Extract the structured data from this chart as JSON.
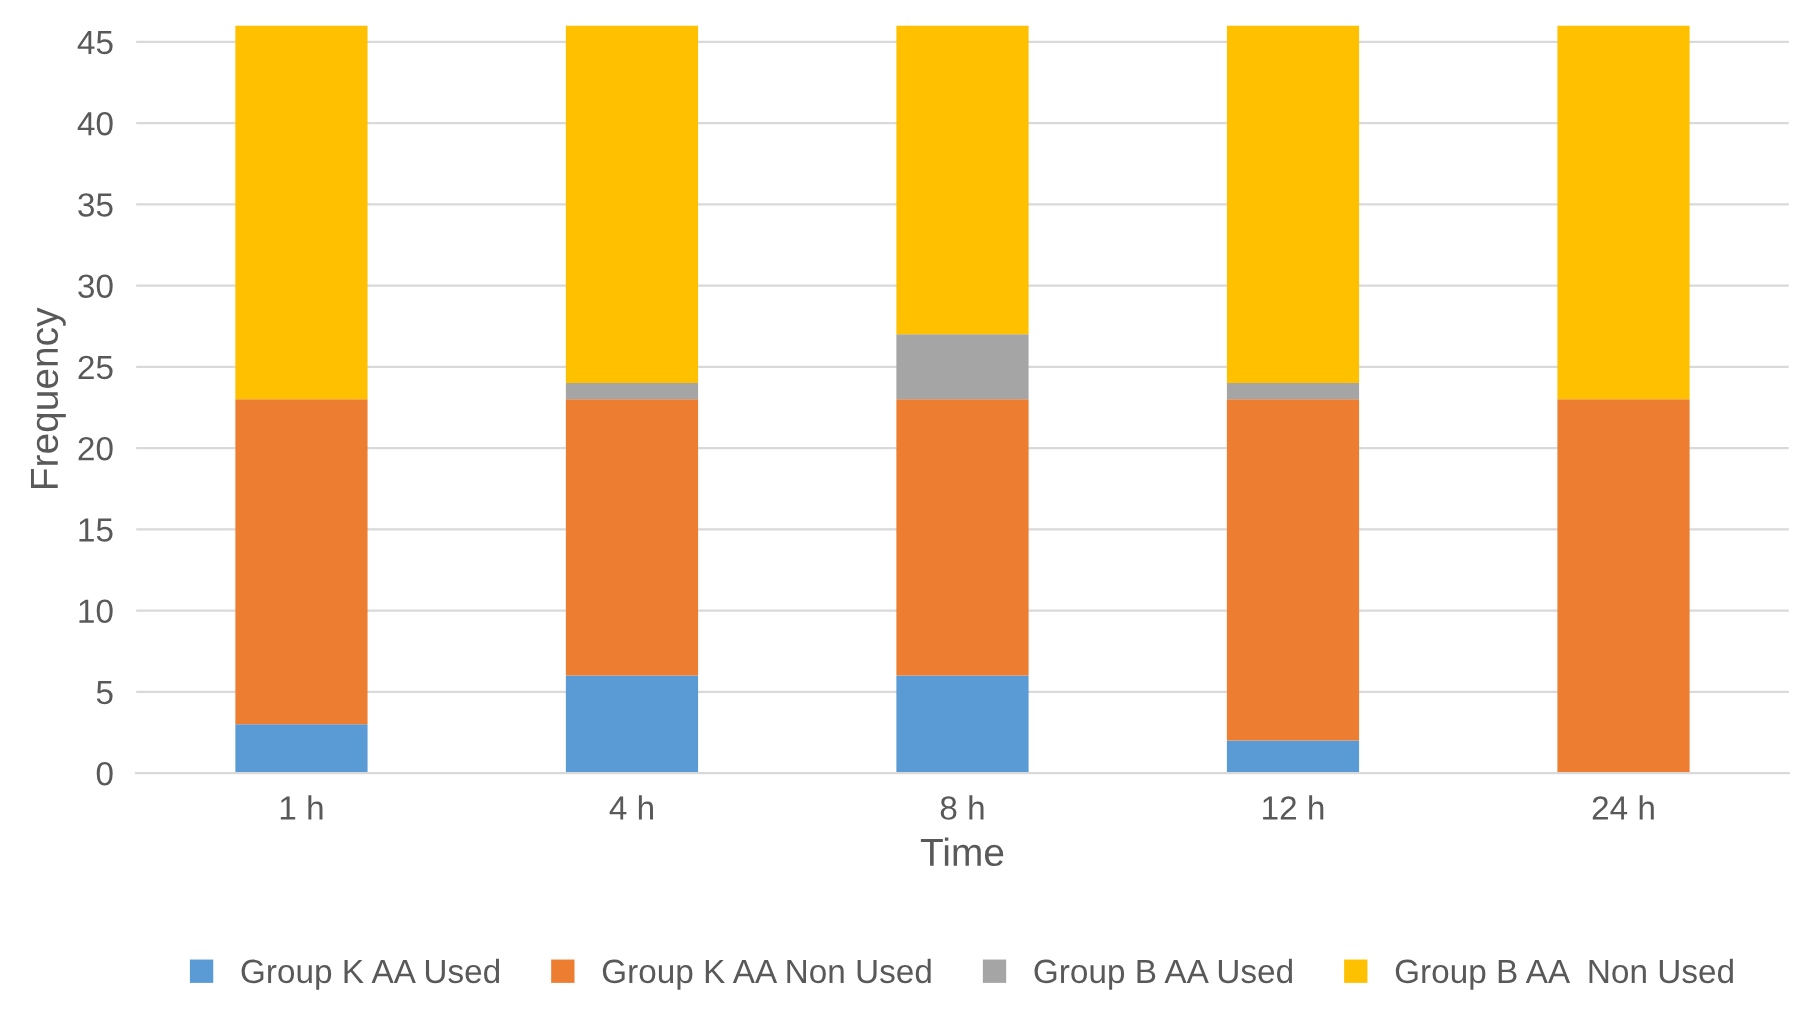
{
  "chart_data": {
    "type": "bar",
    "stacked": true,
    "xlabel": "Time",
    "ylabel": "Frequency",
    "categories": [
      "1 h",
      "4 h",
      "8 h",
      "12 h",
      "24 h"
    ],
    "series": [
      {
        "name": "Group K AA Used",
        "color": "#5b9bd5",
        "values": [
          3,
          6,
          6,
          2,
          0
        ]
      },
      {
        "name": "Group K AA Non Used",
        "color": "#ed7d31",
        "values": [
          20,
          17,
          17,
          21,
          23
        ]
      },
      {
        "name": "Group B AA Used",
        "color": "#a5a5a5",
        "values": [
          0,
          1,
          4,
          1,
          0
        ]
      },
      {
        "name": "Group B AA  Non Used",
        "color": "#ffc000",
        "values": [
          23,
          22,
          19,
          22,
          23
        ]
      }
    ],
    "ylim": [
      0,
      46
    ],
    "yticks": [
      0,
      5,
      10,
      15,
      20,
      25,
      30,
      35,
      40,
      45
    ],
    "grid": "y",
    "legend": "bottom"
  }
}
